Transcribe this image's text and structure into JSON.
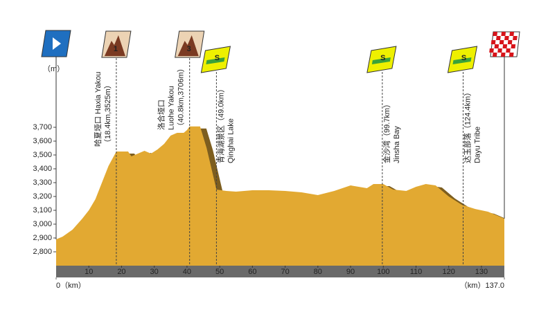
{
  "chart_data": {
    "type": "area",
    "y_axis_label": "（m）",
    "x": [
      0,
      2,
      5,
      8,
      10,
      12,
      14,
      16,
      18.4,
      20,
      22,
      23,
      25,
      27,
      29,
      31,
      33,
      35,
      37,
      39,
      40,
      40.8,
      44,
      46,
      49,
      52,
      55,
      60,
      65,
      70,
      75,
      80,
      85,
      90,
      95,
      97,
      100,
      103,
      107,
      110,
      113,
      116,
      120,
      124,
      128,
      132,
      137
    ],
    "values": [
      2890,
      2910,
      2960,
      3040,
      3100,
      3180,
      3300,
      3420,
      3525,
      3525,
      3525,
      3490,
      3510,
      3530,
      3510,
      3540,
      3580,
      3640,
      3660,
      3660,
      3680,
      3706,
      3706,
      3550,
      3250,
      3240,
      3235,
      3245,
      3245,
      3240,
      3230,
      3210,
      3240,
      3280,
      3260,
      3290,
      3290,
      3250,
      3240,
      3270,
      3290,
      3280,
      3200,
      3140,
      3110,
      3090,
      3040
    ],
    "color": "#e2a932",
    "shadow_color": "#7d5e1f",
    "xlim": [
      0,
      137
    ],
    "ylim": [
      2700,
      3800
    ],
    "xticks": [
      {
        "value": 0,
        "label": "0（km）"
      },
      10,
      20,
      30,
      40,
      50,
      60,
      70,
      80,
      90,
      100,
      110,
      120,
      130,
      {
        "value": 137,
        "label": "（km）137.0"
      }
    ],
    "yticks": [
      {
        "value": 2800,
        "label": "2,800"
      },
      {
        "value": 2900,
        "label": "2,900"
      },
      {
        "value": 3000,
        "label": "3,000"
      },
      {
        "value": 3100,
        "label": "3,100"
      },
      {
        "value": 3200,
        "label": "3,200"
      },
      {
        "value": 3300,
        "label": "3,300"
      },
      {
        "value": 3400,
        "label": "3,400"
      },
      {
        "value": 3500,
        "label": "3,500"
      },
      {
        "value": 3600,
        "label": "3,600"
      },
      {
        "value": 3700,
        "label": "3,700"
      }
    ],
    "waypoints": [
      {
        "km": 18.4,
        "marker": "kom",
        "category": "1",
        "lines": [
          "哈夏垭口 Haxia Yakou",
          "（18.4km,3525m）"
        ]
      },
      {
        "km": 40.8,
        "marker": "kom",
        "category": "3",
        "lines": [
          "洛合垭口",
          "Luohe Yakou",
          "（40.8km,3706m）"
        ]
      },
      {
        "km": 49.0,
        "marker": "sprint",
        "category": "S",
        "lines": [
          "青海湖景区（49.0km）",
          "Qinghai Lake"
        ]
      },
      {
        "km": 99.7,
        "marker": "sprint",
        "category": "S",
        "lines": [
          "金沙湾（99.7km）",
          "Jinsha Bay"
        ]
      },
      {
        "km": 124.4,
        "marker": "sprint",
        "category": "S",
        "lines": [
          "达玉部落（124.4km）",
          "Dayu Tribe"
        ]
      }
    ]
  }
}
